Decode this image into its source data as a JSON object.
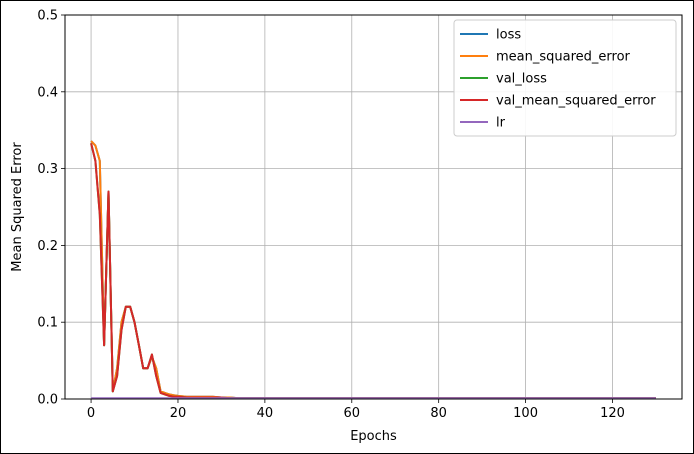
{
  "chart_data": {
    "type": "line",
    "title": "",
    "xlabel": "Epochs",
    "ylabel": "Mean Squared Error",
    "xlim": [
      -6,
      136
    ],
    "ylim": [
      0,
      0.5
    ],
    "xticks": [
      0,
      20,
      40,
      60,
      80,
      100,
      120
    ],
    "yticks": [
      0.0,
      0.1,
      0.2,
      0.3,
      0.4,
      0.5
    ],
    "xtick_labels": [
      "0",
      "20",
      "40",
      "60",
      "80",
      "100",
      "120"
    ],
    "ytick_labels": [
      "0.0",
      "0.1",
      "0.2",
      "0.3",
      "0.4",
      "0.5"
    ],
    "grid": true,
    "legend_position": "top-right",
    "series": [
      {
        "name": "loss",
        "color": "#1f77b4",
        "x": [
          0,
          1,
          2,
          3,
          4,
          5,
          6,
          7,
          8,
          9,
          10,
          11,
          12,
          13,
          14,
          15,
          16,
          17,
          18,
          19,
          20,
          22,
          24,
          26,
          28,
          30,
          32,
          34,
          36,
          130
        ],
        "y": [
          0.336,
          0.33,
          0.31,
          0.07,
          0.27,
          0.01,
          0.04,
          0.1,
          0.12,
          0.12,
          0.1,
          0.07,
          0.04,
          0.04,
          0.055,
          0.04,
          0.01,
          0.008,
          0.006,
          0.005,
          0.004,
          0.003,
          0.003,
          0.003,
          0.003,
          0.002,
          0.002,
          0.001,
          0.001,
          0.001
        ]
      },
      {
        "name": "mean_squared_error",
        "color": "#ff7f0e",
        "x": [
          0,
          1,
          2,
          3,
          4,
          5,
          6,
          7,
          8,
          9,
          10,
          11,
          12,
          13,
          14,
          15,
          16,
          17,
          18,
          19,
          20,
          22,
          24,
          26,
          28,
          30,
          32,
          34,
          36,
          130
        ],
        "y": [
          0.336,
          0.33,
          0.31,
          0.07,
          0.27,
          0.01,
          0.04,
          0.1,
          0.12,
          0.12,
          0.1,
          0.07,
          0.04,
          0.04,
          0.055,
          0.04,
          0.01,
          0.008,
          0.006,
          0.005,
          0.004,
          0.003,
          0.003,
          0.003,
          0.003,
          0.002,
          0.002,
          0.001,
          0.001,
          0.001
        ]
      },
      {
        "name": "val_loss",
        "color": "#2ca02c",
        "x": [
          0,
          1,
          2,
          3,
          4,
          5,
          6,
          7,
          8,
          9,
          10,
          11,
          12,
          13,
          14,
          15,
          16,
          17,
          18,
          19,
          20,
          22,
          24,
          26,
          28,
          30,
          32,
          34,
          36,
          130
        ],
        "y": [
          0.333,
          0.31,
          0.24,
          0.07,
          0.27,
          0.01,
          0.03,
          0.09,
          0.12,
          0.12,
          0.1,
          0.07,
          0.04,
          0.04,
          0.058,
          0.03,
          0.008,
          0.006,
          0.004,
          0.003,
          0.003,
          0.002,
          0.002,
          0.002,
          0.002,
          0.002,
          0.001,
          0.001,
          0.001,
          0.001
        ]
      },
      {
        "name": "val_mean_squared_error",
        "color": "#d62728",
        "x": [
          0,
          1,
          2,
          3,
          4,
          5,
          6,
          7,
          8,
          9,
          10,
          11,
          12,
          13,
          14,
          15,
          16,
          17,
          18,
          19,
          20,
          22,
          24,
          26,
          28,
          30,
          32,
          34,
          36,
          130
        ],
        "y": [
          0.333,
          0.31,
          0.24,
          0.07,
          0.27,
          0.01,
          0.03,
          0.09,
          0.12,
          0.12,
          0.1,
          0.07,
          0.04,
          0.04,
          0.058,
          0.03,
          0.008,
          0.006,
          0.004,
          0.003,
          0.003,
          0.002,
          0.002,
          0.002,
          0.002,
          0.002,
          0.001,
          0.001,
          0.001,
          0.001
        ]
      },
      {
        "name": "lr",
        "color": "#9467bd",
        "x": [
          0,
          130
        ],
        "y": [
          0.001,
          0.001
        ]
      }
    ]
  }
}
